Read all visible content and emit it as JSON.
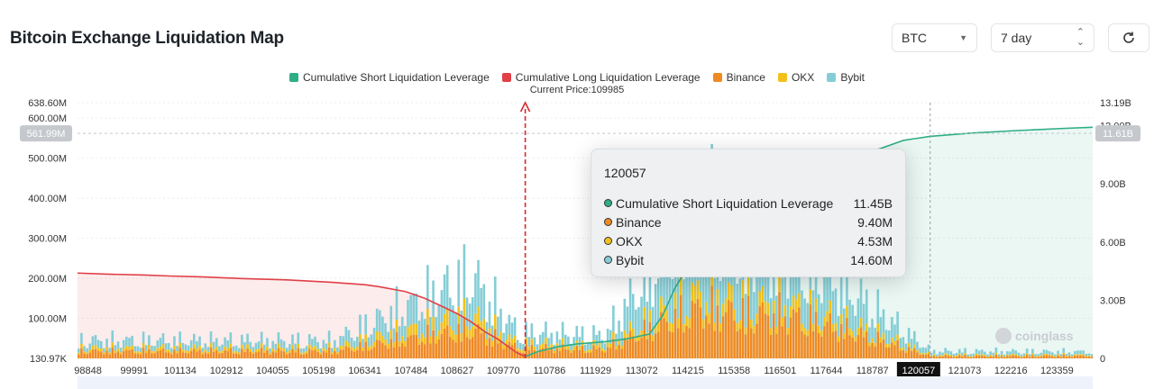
{
  "header": {
    "title": "Bitcoin Exchange Liquidation Map",
    "coin_select": "BTC",
    "range_select": "7 day",
    "refresh_icon": "refresh-icon"
  },
  "colors": {
    "short_cum": "#2eae85",
    "long_cum": "#e04047",
    "binance": "#ef8a22",
    "okx": "#f2c21b",
    "bybit": "#84cdd6",
    "price_line": "#d9282f"
  },
  "current_price_label": "Current Price:109985",
  "tooltip": {
    "title": "120057",
    "rows": [
      {
        "label": "Cumulative Short Liquidation Leverage",
        "value": "11.45B",
        "color": "#2eae85"
      },
      {
        "label": "Binance",
        "value": "9.40M",
        "color": "#ef8a22"
      },
      {
        "label": "OKX",
        "value": "4.53M",
        "color": "#f2c21b"
      },
      {
        "label": "Bybit",
        "value": "14.60M",
        "color": "#84cdd6"
      }
    ]
  },
  "watermark": "coinglass",
  "chart_data": {
    "type": "bar",
    "title": "Bitcoin Exchange Liquidation Map",
    "current_price": 109985,
    "x_range": [
      98848,
      124100
    ],
    "x_ticks": [
      "98848",
      "99991",
      "101134",
      "102912",
      "104055",
      "105198",
      "106341",
      "107484",
      "108627",
      "109770",
      "110786",
      "111929",
      "113072",
      "114215",
      "115358",
      "116501",
      "117644",
      "118787",
      "120057",
      "121073",
      "122216",
      "123359"
    ],
    "highlight_tick": "120057",
    "y_left_ticks": [
      "130.97K",
      "100.00M",
      "200.00M",
      "300.00M",
      "400.00M",
      "500.00M",
      "600.00M",
      "638.60M"
    ],
    "y_left_range": [
      0,
      638600000
    ],
    "y_left_marker": "561.99M",
    "y_right_ticks": [
      "0",
      "3.00B",
      "6.00B",
      "9.00B",
      "12.00B",
      "13.19B"
    ],
    "y_right_range": [
      0,
      13190000000
    ],
    "y_right_marker": "11.61B",
    "legend": [
      "Cumulative Short Liquidation Leverage",
      "Cumulative Long Liquidation Leverage",
      "Binance",
      "OKX",
      "Bybit"
    ],
    "series": [
      {
        "name": "Cumulative Long Liquidation Leverage",
        "x": [
          98848,
          99500,
          100500,
          101134,
          102000,
          102912,
          104055,
          105198,
          106000,
          106341,
          107000,
          107484,
          108000,
          108300,
          108627,
          109000,
          109300,
          109500,
          109770,
          109985
        ],
        "y": [
          4.4,
          4.35,
          4.3,
          4.25,
          4.2,
          4.12,
          4.05,
          3.92,
          3.8,
          3.7,
          3.45,
          3.1,
          2.6,
          2.3,
          1.9,
          1.35,
          1.0,
          0.7,
          0.3,
          0.1
        ]
      },
      {
        "name": "Cumulative Short Liquidation Leverage",
        "x": [
          109985,
          110300,
          110786,
          111300,
          111929,
          112500,
          113072,
          113400,
          113700,
          114000,
          114215,
          114600,
          115000,
          115358,
          116000,
          116501,
          117200,
          117644,
          118300,
          118787,
          119400,
          120057,
          121073,
          122216,
          123359,
          124100
        ],
        "y": [
          0.1,
          0.35,
          0.6,
          0.75,
          0.85,
          1.0,
          1.25,
          2.2,
          3.6,
          4.6,
          5.2,
          6.1,
          7.6,
          8.6,
          9.5,
          10.0,
          10.25,
          10.4,
          10.55,
          10.8,
          11.25,
          11.45,
          11.62,
          11.75,
          11.86,
          11.92
        ]
      },
      {
        "name": "Binance",
        "x": [
          105198,
          107484,
          108627,
          109770,
          111929,
          114215,
          115358,
          116501,
          117644,
          120057,
          123359
        ],
        "y": [
          28,
          85,
          110,
          40,
          35,
          190,
          170,
          165,
          120,
          9.4,
          10
        ]
      },
      {
        "name": "OKX",
        "x": [
          105198,
          107484,
          108627,
          109770,
          111929,
          114215,
          115358,
          116501,
          117644,
          120057,
          123359
        ],
        "y": [
          12,
          40,
          55,
          18,
          14,
          60,
          50,
          45,
          35,
          4.53,
          4
        ]
      },
      {
        "name": "Bybit",
        "x": [
          105198,
          107484,
          108627,
          109770,
          111929,
          114215,
          115358,
          116501,
          117644,
          120057,
          123359
        ],
        "y": [
          30,
          110,
          150,
          45,
          40,
          330,
          240,
          200,
          150,
          14.6,
          12
        ]
      }
    ]
  }
}
